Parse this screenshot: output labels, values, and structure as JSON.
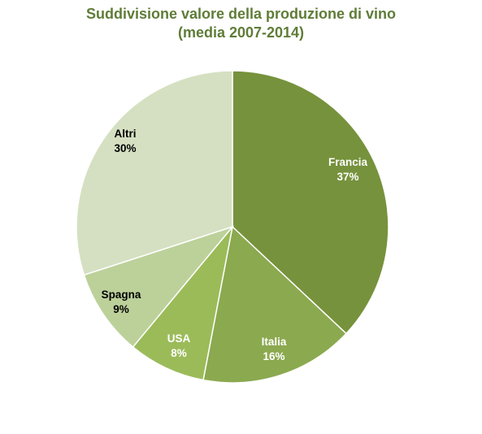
{
  "chart_data": {
    "type": "pie",
    "title": "Suddivisione  valore della produzione di vino",
    "subtitle": "(media 2007-2014)",
    "categories": [
      "Francia",
      "Italia",
      "USA",
      "Spagna",
      "Altri"
    ],
    "values": [
      37,
      16,
      8,
      9,
      30
    ],
    "value_labels": [
      "37%",
      "16%",
      "8%",
      "9%",
      "30%"
    ],
    "colors": [
      "#76923c",
      "#8ba94f",
      "#9bbb59",
      "#bcd19a",
      "#d5e0c2"
    ],
    "label_colors": [
      "#ffffff",
      "#ffffff",
      "#ffffff",
      "#000000",
      "#000000"
    ],
    "start_angle_deg": 0,
    "direction": "clockwise",
    "legend": "none"
  }
}
